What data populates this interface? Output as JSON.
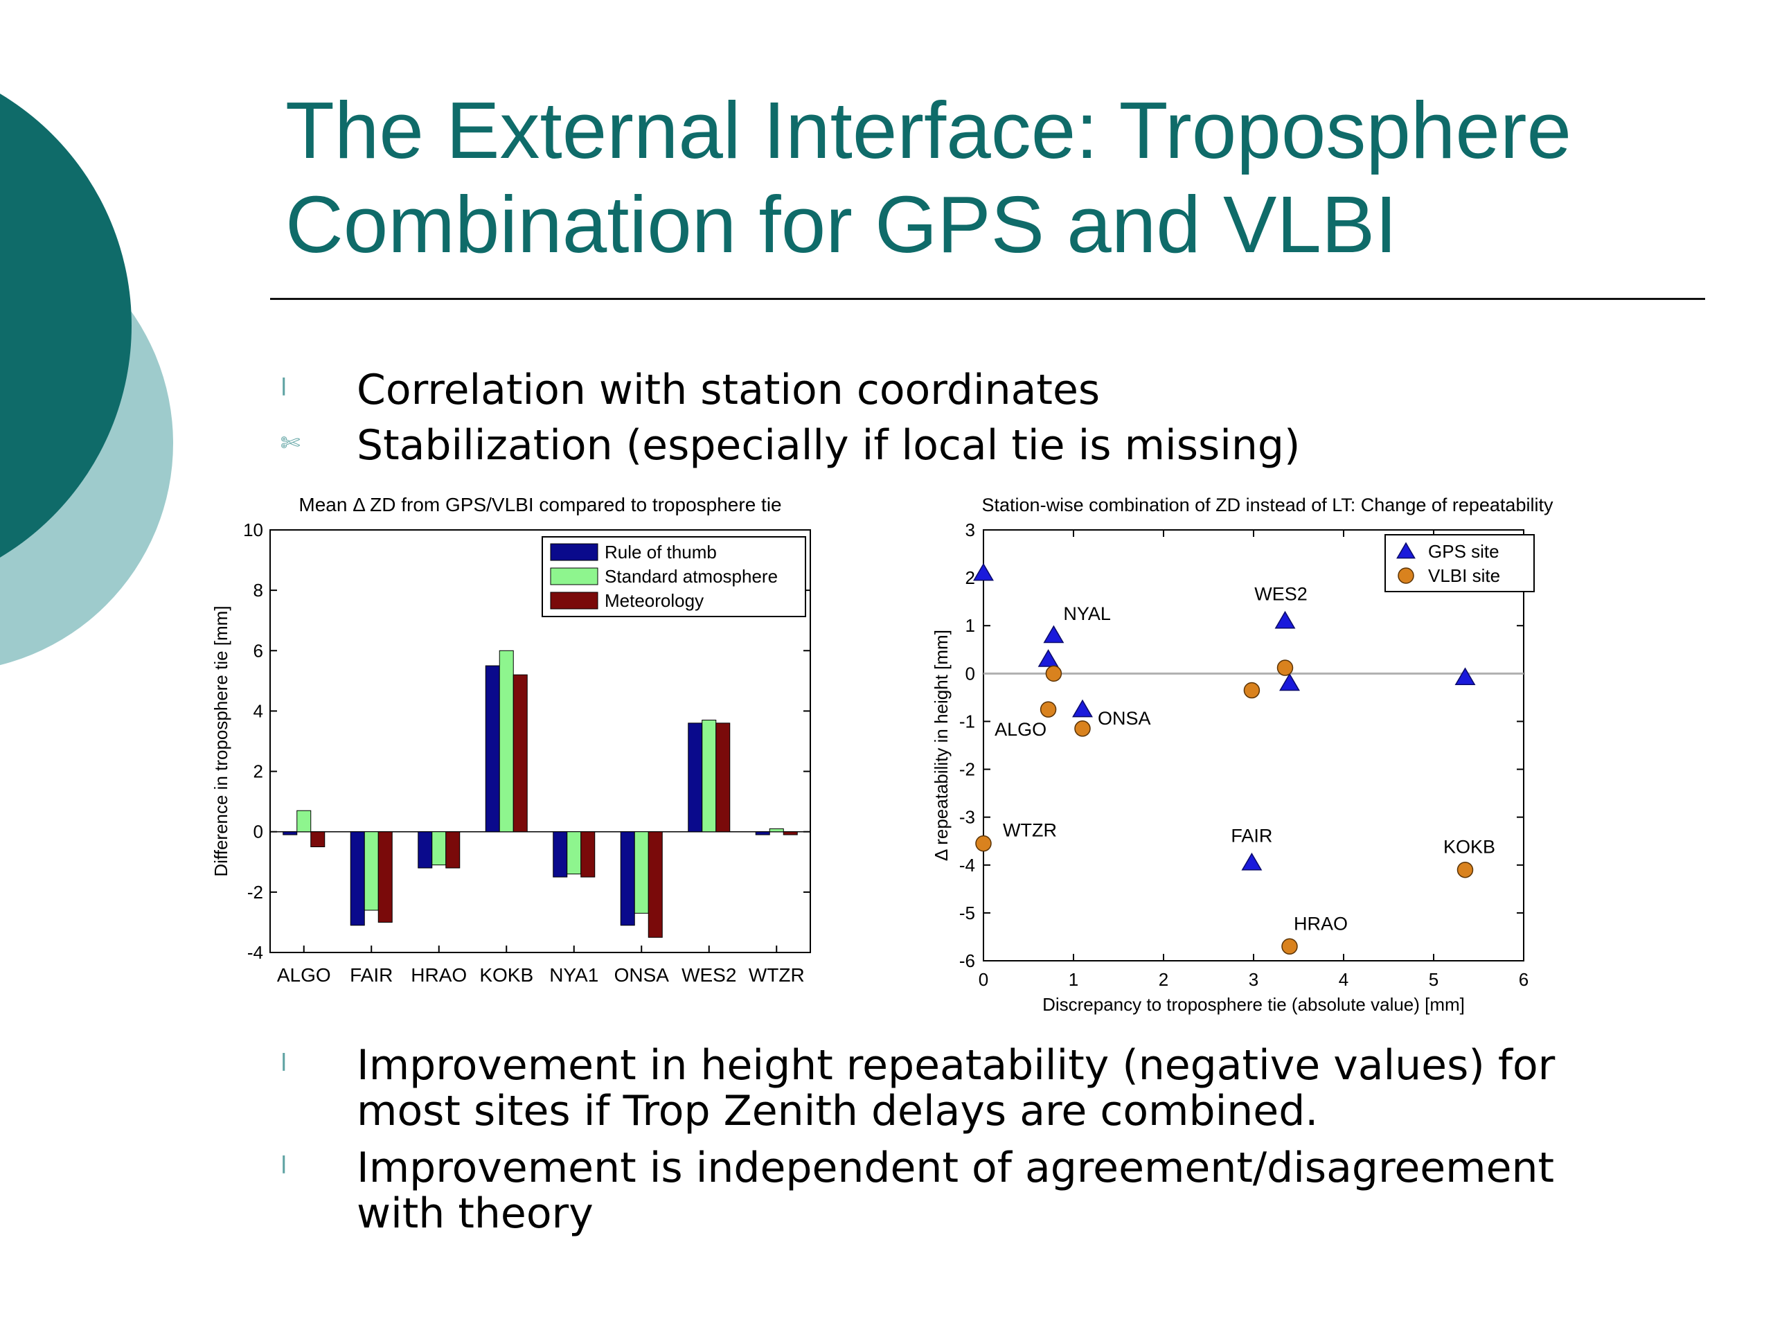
{
  "slide": {
    "title": "The External Interface: Troposphere Combination for GPS and VLBI",
    "bullets_top": [
      {
        "marker": "l",
        "text": "Correlation with station coordinates"
      },
      {
        "marker": "✄",
        "text": "Stabilization (especially if local tie is missing)"
      }
    ],
    "bullets_bottom": [
      {
        "marker": "l",
        "line1": "Improvement in height repeatability (negative values) for",
        "line2": "most sites if Trop Zenith delays are combined."
      },
      {
        "marker": "l",
        "line1": "Improvement is independent of agreement/disagreement",
        "line2": "with theory"
      }
    ],
    "colors": {
      "title": "#0f6b69",
      "circle_dark": "#0f6b69",
      "circle_light": "#9ecbcc"
    }
  },
  "chart_data": [
    {
      "type": "bar",
      "title": "Mean  Δ ZD from GPS/VLBI compared to troposphere tie",
      "xlabel": "",
      "ylabel": "Difference in troposphere tie [mm]",
      "ylim": [
        -4,
        10
      ],
      "yticks": [
        -4,
        -2,
        0,
        2,
        4,
        6,
        8,
        10
      ],
      "categories": [
        "ALGO",
        "FAIR",
        "HRAO",
        "KOKB",
        "NYA1",
        "ONSA",
        "WES2",
        "WTZR"
      ],
      "legend_position": "top-right",
      "series": [
        {
          "name": "Rule of thumb",
          "color": "#0a0a8c",
          "values": [
            -0.1,
            -3.1,
            -1.2,
            5.5,
            -1.5,
            -3.1,
            3.6,
            -0.1
          ]
        },
        {
          "name": "Standard atmosphere",
          "color": "#8ef58e",
          "values": [
            0.7,
            -2.6,
            -1.1,
            6.0,
            -1.4,
            -2.7,
            3.7,
            0.1
          ]
        },
        {
          "name": "Meteorology",
          "color": "#7a0a0a",
          "values": [
            -0.5,
            -3.0,
            -1.2,
            5.2,
            -1.5,
            -3.5,
            3.6,
            -0.1
          ]
        }
      ]
    },
    {
      "type": "scatter",
      "title": "Station-wise combination of ZD instead of LT: Change of repeatability",
      "xlabel": "Discrepancy to troposphere tie (absolute value) [mm]",
      "ylabel": "Δ repeatability in height [mm]",
      "xlim": [
        0,
        6
      ],
      "ylim": [
        -6,
        3
      ],
      "xticks": [
        0,
        1,
        2,
        3,
        4,
        5,
        6
      ],
      "yticks": [
        -6,
        -5,
        -4,
        -3,
        -2,
        -1,
        0,
        1,
        2,
        3
      ],
      "reference_line_y": 0,
      "legend_position": "top-right",
      "series": [
        {
          "name": "GPS site",
          "marker": "triangle",
          "color": "#1a1adb",
          "points": [
            {
              "x": 0.0,
              "y": 2.1,
              "label": ""
            },
            {
              "x": 0.78,
              "y": 0.8,
              "label": "NYAL"
            },
            {
              "x": 0.72,
              "y": 0.3,
              "label": ""
            },
            {
              "x": 1.1,
              "y": -0.75,
              "label": ""
            },
            {
              "x": 3.35,
              "y": 1.1,
              "label": "WES2"
            },
            {
              "x": 3.4,
              "y": -0.2,
              "label": ""
            },
            {
              "x": 5.35,
              "y": -0.08,
              "label": ""
            },
            {
              "x": 2.98,
              "y": -3.95,
              "label": "FAIR"
            }
          ]
        },
        {
          "name": "VLBI site",
          "marker": "circle",
          "color": "#d9821e",
          "points": [
            {
              "x": 0.78,
              "y": 0.0,
              "label": ""
            },
            {
              "x": 0.72,
              "y": -0.75,
              "label": "ALGO"
            },
            {
              "x": 1.1,
              "y": -1.15,
              "label": "ONSA"
            },
            {
              "x": 2.98,
              "y": -0.35,
              "label": ""
            },
            {
              "x": 3.35,
              "y": 0.12,
              "label": ""
            },
            {
              "x": 0.0,
              "y": -3.55,
              "label": "WTZR"
            },
            {
              "x": 5.35,
              "y": -4.1,
              "label": "KOKB"
            },
            {
              "x": 3.4,
              "y": -5.7,
              "label": "HRAO"
            }
          ]
        }
      ]
    }
  ]
}
